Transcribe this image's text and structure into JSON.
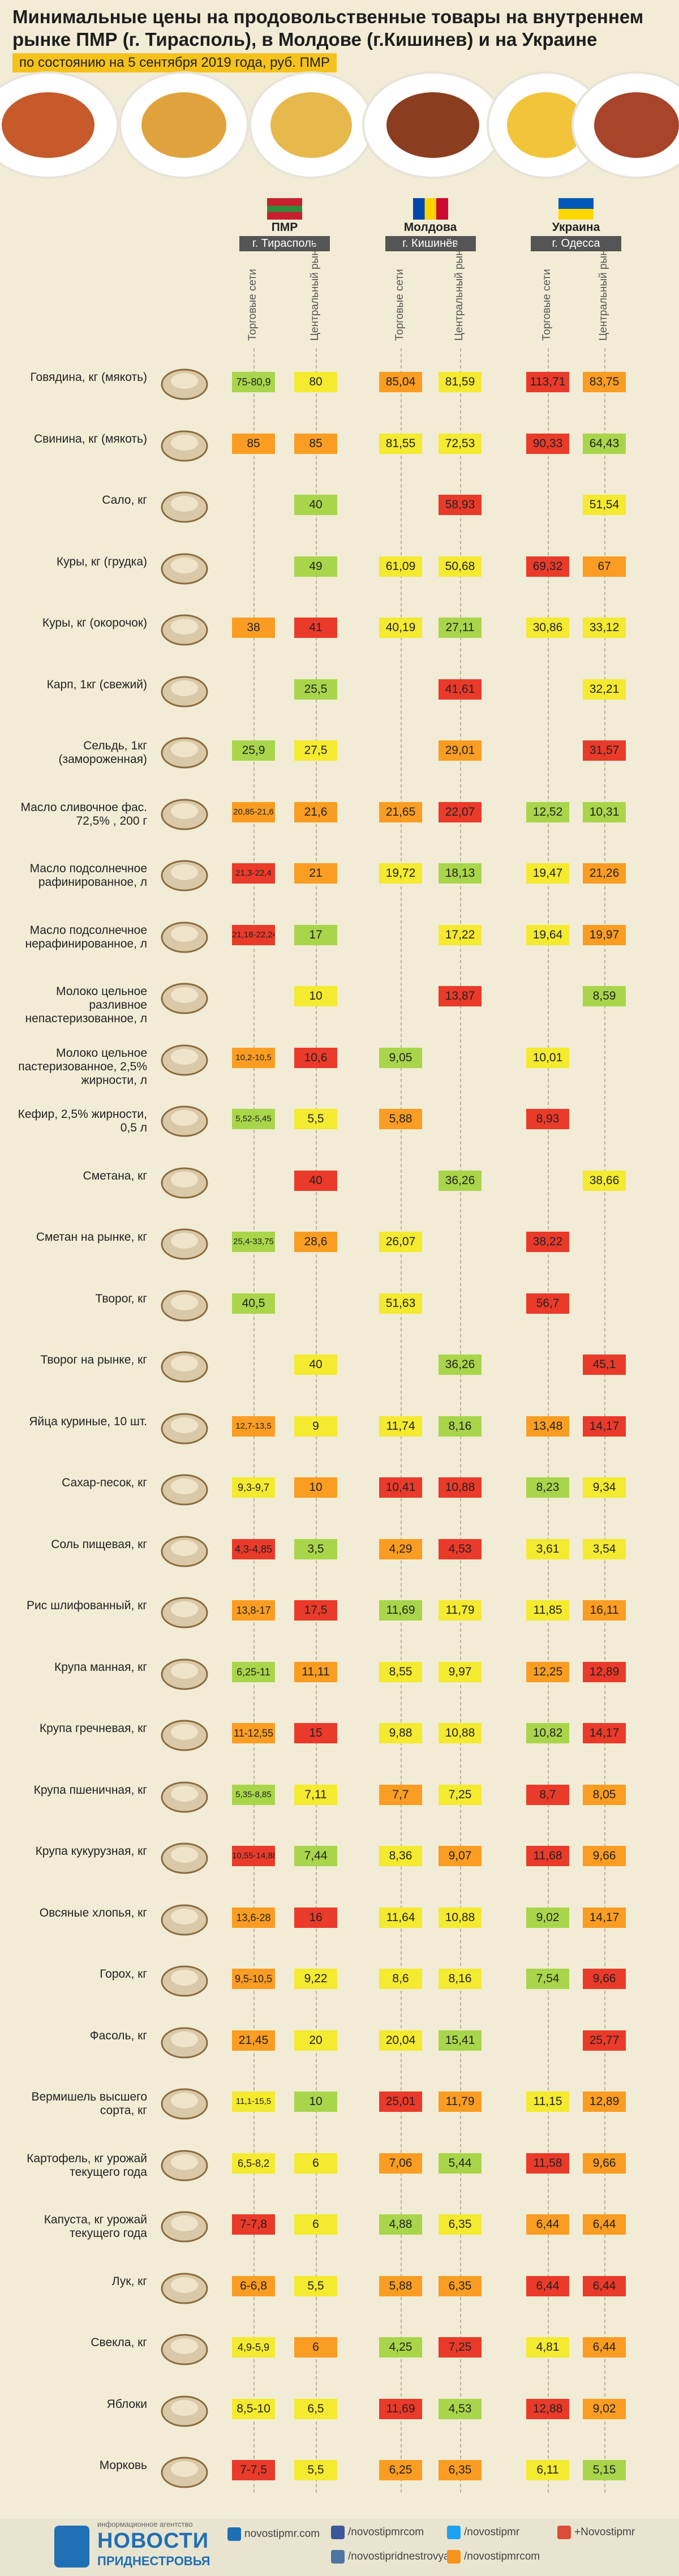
{
  "colors": {
    "green": "#a9d54a",
    "yellow": "#f4ea2f",
    "orange": "#fa9d22",
    "red": "#ea3a2a",
    "bg": "#f2ecd6"
  },
  "header": {
    "title": "Минимальные цены на продовольственные товары на внутреннем рынке ПМР (г. Тирасполь), в Молдове (г.Кишинев) и на Украине (г.Одесса)",
    "subtitle": "по состоянию на 5 сентября 2019 года, руб. ПМР"
  },
  "regions": [
    {
      "name": "ПМР",
      "city": "г. Тирасполь",
      "flag": "pmr"
    },
    {
      "name": "Молдова",
      "city": "г. Кишинёв",
      "flag": "md"
    },
    {
      "name": "Украина",
      "city": "г. Одесса",
      "flag": "ua"
    }
  ],
  "column_headers": [
    "Торговые сети",
    "Центральный рынок",
    "Торговые сети",
    "Центральный рынок",
    "Торговые сети",
    "Центральный рынок"
  ],
  "chart_data": {
    "type": "table",
    "title": "Минимальные цены на продовольственные товары на внутреннем рынке ПМР (г. Тирасполь), в Молдове (г.Кишинев) и на Украине (г.Одесса)",
    "subtitle": "по состоянию на 5 сентября 2019 года, руб. ПМР",
    "columns": [
      "ПМР — Торговые сети",
      "ПМР — Центральный рынок",
      "Молдова — Торговые сети",
      "Молдова — Центральный рынок",
      "Украина — Торговые сети",
      "Украина — Центральный рынок"
    ],
    "rows": [
      {
        "label": "Говядина, кг (мякоть)",
        "icon": "cow-icon",
        "cells": [
          [
            "75-80,9",
            "g"
          ],
          [
            "80",
            "y"
          ],
          [
            "85,04",
            "o"
          ],
          [
            "81,59",
            "y"
          ],
          [
            "113,71",
            "r"
          ],
          [
            "83,75",
            "o"
          ]
        ]
      },
      {
        "label": "Свинина, кг (мякоть)",
        "icon": "pig-icon",
        "cells": [
          [
            "85",
            "o"
          ],
          [
            "85",
            "o"
          ],
          [
            "81,55",
            "y"
          ],
          [
            "72,53",
            "y"
          ],
          [
            "90,33",
            "r"
          ],
          [
            "64,43",
            "g"
          ]
        ]
      },
      {
        "label": "Сало, кг",
        "icon": "bacon-icon",
        "cells": [
          null,
          [
            "40",
            "g"
          ],
          null,
          [
            "58,93",
            "r"
          ],
          null,
          [
            "51,54",
            "y"
          ]
        ]
      },
      {
        "label": "Куры, кг (грудка)",
        "icon": "chicken-breast-icon",
        "cells": [
          null,
          [
            "49",
            "g"
          ],
          [
            "61,09",
            "y"
          ],
          [
            "50,68",
            "y"
          ],
          [
            "69,32",
            "r"
          ],
          [
            "67",
            "o"
          ]
        ]
      },
      {
        "label": "Куры, кг (окорочок)",
        "icon": "chicken-leg-icon",
        "cells": [
          [
            "38",
            "o"
          ],
          [
            "41",
            "r"
          ],
          [
            "40,19",
            "y"
          ],
          [
            "27,11",
            "g"
          ],
          [
            "30,86",
            "y"
          ],
          [
            "33,12",
            "y"
          ]
        ]
      },
      {
        "label": "Карп, 1кг (свежий)",
        "icon": "carp-icon",
        "cells": [
          null,
          [
            "25,5",
            "g"
          ],
          null,
          [
            "41,61",
            "r"
          ],
          null,
          [
            "32,21",
            "y"
          ]
        ]
      },
      {
        "label": "Сельдь, 1кг (замороженная)",
        "icon": "herring-icon",
        "cells": [
          [
            "25,9",
            "g"
          ],
          [
            "27,5",
            "y"
          ],
          null,
          [
            "29,01",
            "o"
          ],
          null,
          [
            "31,57",
            "r"
          ]
        ]
      },
      {
        "label": "Масло сливочное фас. 72,5% , 200 г",
        "icon": "butter-icon",
        "cells": [
          [
            "20,85-21,6",
            "o"
          ],
          [
            "21,6",
            "o"
          ],
          [
            "21,65",
            "o"
          ],
          [
            "22,07",
            "r"
          ],
          [
            "12,52",
            "g"
          ],
          [
            "10,31",
            "g"
          ]
        ]
      },
      {
        "label": "Масло подсолнечное рафинированное, л",
        "icon": "oil-bottle-icon",
        "cells": [
          [
            "21,3-22,4",
            "r"
          ],
          [
            "21",
            "o"
          ],
          [
            "19,72",
            "y"
          ],
          [
            "18,13",
            "g"
          ],
          [
            "19,47",
            "y"
          ],
          [
            "21,26",
            "o"
          ]
        ]
      },
      {
        "label": "Масло подсолнечное нерафинированное, л",
        "icon": "oil-bottle-icon",
        "cells": [
          [
            "21,18-22,24",
            "r"
          ],
          [
            "17",
            "g"
          ],
          null,
          [
            "17,22",
            "y"
          ],
          [
            "19,64",
            "y"
          ],
          [
            "19,97",
            "o"
          ]
        ]
      },
      {
        "label": "Молоко цельное разливное непастеризованное, л",
        "icon": "milk-bottles-icon",
        "cells": [
          null,
          [
            "10",
            "y"
          ],
          null,
          [
            "13,87",
            "r"
          ],
          null,
          [
            "8,59",
            "g"
          ]
        ]
      },
      {
        "label": "Молоко цельное пастеризованное, 2,5% жирности, л",
        "icon": "milk-carton-icon",
        "cells": [
          [
            "10,2-10,5",
            "o"
          ],
          [
            "10,6",
            "r"
          ],
          [
            "9,05",
            "g"
          ],
          null,
          [
            "10,01",
            "y"
          ],
          null
        ]
      },
      {
        "label": "Кефир, 2,5% жирности, 0,5 л",
        "icon": "kefir-icon",
        "cells": [
          [
            "5,52-5,45",
            "g"
          ],
          [
            "5,5",
            "y"
          ],
          [
            "5,88",
            "o"
          ],
          null,
          [
            "8,93",
            "r"
          ],
          null
        ]
      },
      {
        "label": "Сметана, кг",
        "icon": "sour-cream-icon",
        "cells": [
          null,
          [
            "40",
            "r"
          ],
          null,
          [
            "36,26",
            "g"
          ],
          null,
          [
            "38,66",
            "y"
          ]
        ]
      },
      {
        "label": "Сметан на рынке, кг",
        "icon": "sour-cream-jar-icon",
        "cells": [
          [
            "25,4-33,75",
            "g"
          ],
          [
            "28,6",
            "o"
          ],
          [
            "26,07",
            "y"
          ],
          null,
          [
            "38,22",
            "r"
          ],
          null
        ]
      },
      {
        "label": "Творог, кг",
        "icon": "cottage-cheese-icon",
        "cells": [
          [
            "40,5",
            "g"
          ],
          null,
          [
            "51,63",
            "y"
          ],
          null,
          [
            "56,7",
            "r"
          ],
          null
        ]
      },
      {
        "label": "Творог на рынке, кг",
        "icon": "cottage-cheese-icon",
        "cells": [
          null,
          [
            "40",
            "y"
          ],
          null,
          [
            "36,26",
            "g"
          ],
          null,
          [
            "45,1",
            "r"
          ]
        ]
      },
      {
        "label": "Яйца куриные, 10 шт.",
        "icon": "eggs-icon",
        "cells": [
          [
            "12,7-13,5",
            "o"
          ],
          [
            "9",
            "y"
          ],
          [
            "11,74",
            "y"
          ],
          [
            "8,16",
            "g"
          ],
          [
            "13,48",
            "o"
          ],
          [
            "14,17",
            "r"
          ]
        ]
      },
      {
        "label": "Сахар-песок, кг",
        "icon": "sugar-bag-icon",
        "cells": [
          [
            "9,3-9,7",
            "y"
          ],
          [
            "10",
            "o"
          ],
          [
            "10,41",
            "r"
          ],
          [
            "10,88",
            "r"
          ],
          [
            "8,23",
            "g"
          ],
          [
            "9,34",
            "y"
          ]
        ]
      },
      {
        "label": "Соль пищевая, кг",
        "icon": "salt-shaker-icon",
        "cells": [
          [
            "4,3-4,85",
            "r"
          ],
          [
            "3,5",
            "g"
          ],
          [
            "4,29",
            "o"
          ],
          [
            "4,53",
            "r"
          ],
          [
            "3,61",
            "y"
          ],
          [
            "3,54",
            "y"
          ]
        ]
      },
      {
        "label": "Рис шлифованный, кг",
        "icon": "rice-bowl-icon",
        "cells": [
          [
            "13,8-17",
            "o"
          ],
          [
            "17,5",
            "r"
          ],
          [
            "11,69",
            "g"
          ],
          [
            "11,79",
            "y"
          ],
          [
            "11,85",
            "y"
          ],
          [
            "16,11",
            "o"
          ]
        ]
      },
      {
        "label": "Крупа манная, кг",
        "icon": "grain-bag-icon",
        "cells": [
          [
            "6,25-11",
            "g"
          ],
          [
            "11,11",
            "o"
          ],
          [
            "8,55",
            "y"
          ],
          [
            "9,97",
            "y"
          ],
          [
            "12,25",
            "o"
          ],
          [
            "12,89",
            "r"
          ]
        ]
      },
      {
        "label": "Крупа гречневая, кг",
        "icon": "grain-bag-icon",
        "cells": [
          [
            "11-12,55",
            "o"
          ],
          [
            "15",
            "r"
          ],
          [
            "9,88",
            "y"
          ],
          [
            "10,88",
            "y"
          ],
          [
            "10,82",
            "g"
          ],
          [
            "14,17",
            "r"
          ]
        ]
      },
      {
        "label": "Крупа пшеничная, кг",
        "icon": "grain-bag-icon",
        "cells": [
          [
            "5,35-8,85",
            "g"
          ],
          [
            "7,11",
            "y"
          ],
          [
            "7,7",
            "o"
          ],
          [
            "7,25",
            "y"
          ],
          [
            "8,7",
            "r"
          ],
          [
            "8,05",
            "o"
          ]
        ]
      },
      {
        "label": "Крупа кукурузная, кг",
        "icon": "grain-bag-icon",
        "cells": [
          [
            "10,55-14,88",
            "r"
          ],
          [
            "7,44",
            "g"
          ],
          [
            "8,36",
            "y"
          ],
          [
            "9,07",
            "o"
          ],
          [
            "11,68",
            "r"
          ],
          [
            "9,66",
            "o"
          ]
        ]
      },
      {
        "label": "Овсяные хлопья, кг",
        "icon": "oat-box-icon",
        "cells": [
          [
            "13,6-28",
            "o"
          ],
          [
            "16",
            "r"
          ],
          [
            "11,64",
            "y"
          ],
          [
            "10,88",
            "y"
          ],
          [
            "9,02",
            "g"
          ],
          [
            "14,17",
            "o"
          ]
        ]
      },
      {
        "label": "Горох, кг",
        "icon": "peas-bag-icon",
        "cells": [
          [
            "9,5-10,5",
            "o"
          ],
          [
            "9,22",
            "y"
          ],
          [
            "8,6",
            "y"
          ],
          [
            "8,16",
            "y"
          ],
          [
            "7,54",
            "g"
          ],
          [
            "9,66",
            "r"
          ]
        ]
      },
      {
        "label": "Фасоль, кг",
        "icon": "beans-bag-icon",
        "cells": [
          [
            "21,45",
            "o"
          ],
          [
            "20",
            "y"
          ],
          [
            "20,04",
            "y"
          ],
          [
            "15,41",
            "g"
          ],
          null,
          [
            "25,77",
            "r"
          ]
        ]
      },
      {
        "label": "Вермишель высшего сорта, кг",
        "icon": "pasta-icon",
        "cells": [
          [
            "11,1-15,5",
            "y"
          ],
          [
            "10",
            "g"
          ],
          [
            "25,01",
            "r"
          ],
          [
            "11,79",
            "o"
          ],
          [
            "11,15",
            "y"
          ],
          [
            "12,89",
            "o"
          ]
        ]
      },
      {
        "label": "Картофель, кг урожай текущего года",
        "icon": "potato-icon",
        "cells": [
          [
            "6,5-8,2",
            "y"
          ],
          [
            "6",
            "y"
          ],
          [
            "7,06",
            "o"
          ],
          [
            "5,44",
            "g"
          ],
          [
            "11,58",
            "r"
          ],
          [
            "9,66",
            "o"
          ]
        ]
      },
      {
        "label": "Капуста, кг урожай текущего года",
        "icon": "cabbage-icon",
        "cells": [
          [
            "7-7,8",
            "r"
          ],
          [
            "6",
            "y"
          ],
          [
            "4,88",
            "g"
          ],
          [
            "6,35",
            "y"
          ],
          [
            "6,44",
            "o"
          ],
          [
            "6,44",
            "o"
          ]
        ]
      },
      {
        "label": "Лук, кг",
        "icon": "onion-icon",
        "cells": [
          [
            "6-6,8",
            "o"
          ],
          [
            "5,5",
            "y"
          ],
          [
            "5,88",
            "o"
          ],
          [
            "6,35",
            "o"
          ],
          [
            "6,44",
            "r"
          ],
          [
            "6,44",
            "r"
          ]
        ]
      },
      {
        "label": "Свекла, кг",
        "icon": "beet-icon",
        "cells": [
          [
            "4,9-5,9",
            "y"
          ],
          [
            "6",
            "o"
          ],
          [
            "4,25",
            "g"
          ],
          [
            "7,25",
            "r"
          ],
          [
            "4,81",
            "y"
          ],
          [
            "6,44",
            "o"
          ]
        ]
      },
      {
        "label": "Яблоки",
        "icon": "apple-icon",
        "cells": [
          [
            "8,5-10",
            "y"
          ],
          [
            "6,5",
            "y"
          ],
          [
            "11,69",
            "r"
          ],
          [
            "4,53",
            "g"
          ],
          [
            "12,88",
            "r"
          ],
          [
            "9,02",
            "o"
          ]
        ]
      },
      {
        "label": "Морковь",
        "icon": "carrot-icon",
        "cells": [
          [
            "7-7,5",
            "r"
          ],
          [
            "5,5",
            "y"
          ],
          [
            "6,25",
            "o"
          ],
          [
            "6,35",
            "o"
          ],
          [
            "6,11",
            "y"
          ],
          [
            "5,15",
            "g"
          ]
        ]
      }
    ]
  },
  "footer": {
    "logo_caption": "информационное агентство",
    "logo_title": "НОВОСТИ",
    "logo_subtitle": "ПРИДНЕСТРОВЬЯ",
    "links": [
      {
        "text": "novostipmr.com",
        "icon": "globe-icon"
      },
      {
        "text": "/novostipmrcom",
        "icon": "facebook-icon"
      },
      {
        "text": "/novostipridnestrovya",
        "icon": "vk-icon"
      },
      {
        "text": "/novostipmr",
        "icon": "twitter-icon"
      },
      {
        "text": "/novostipmrcom",
        "icon": "odnoklassniki-icon"
      },
      {
        "text": "+Novostipmr",
        "icon": "googleplus-icon"
      }
    ]
  }
}
